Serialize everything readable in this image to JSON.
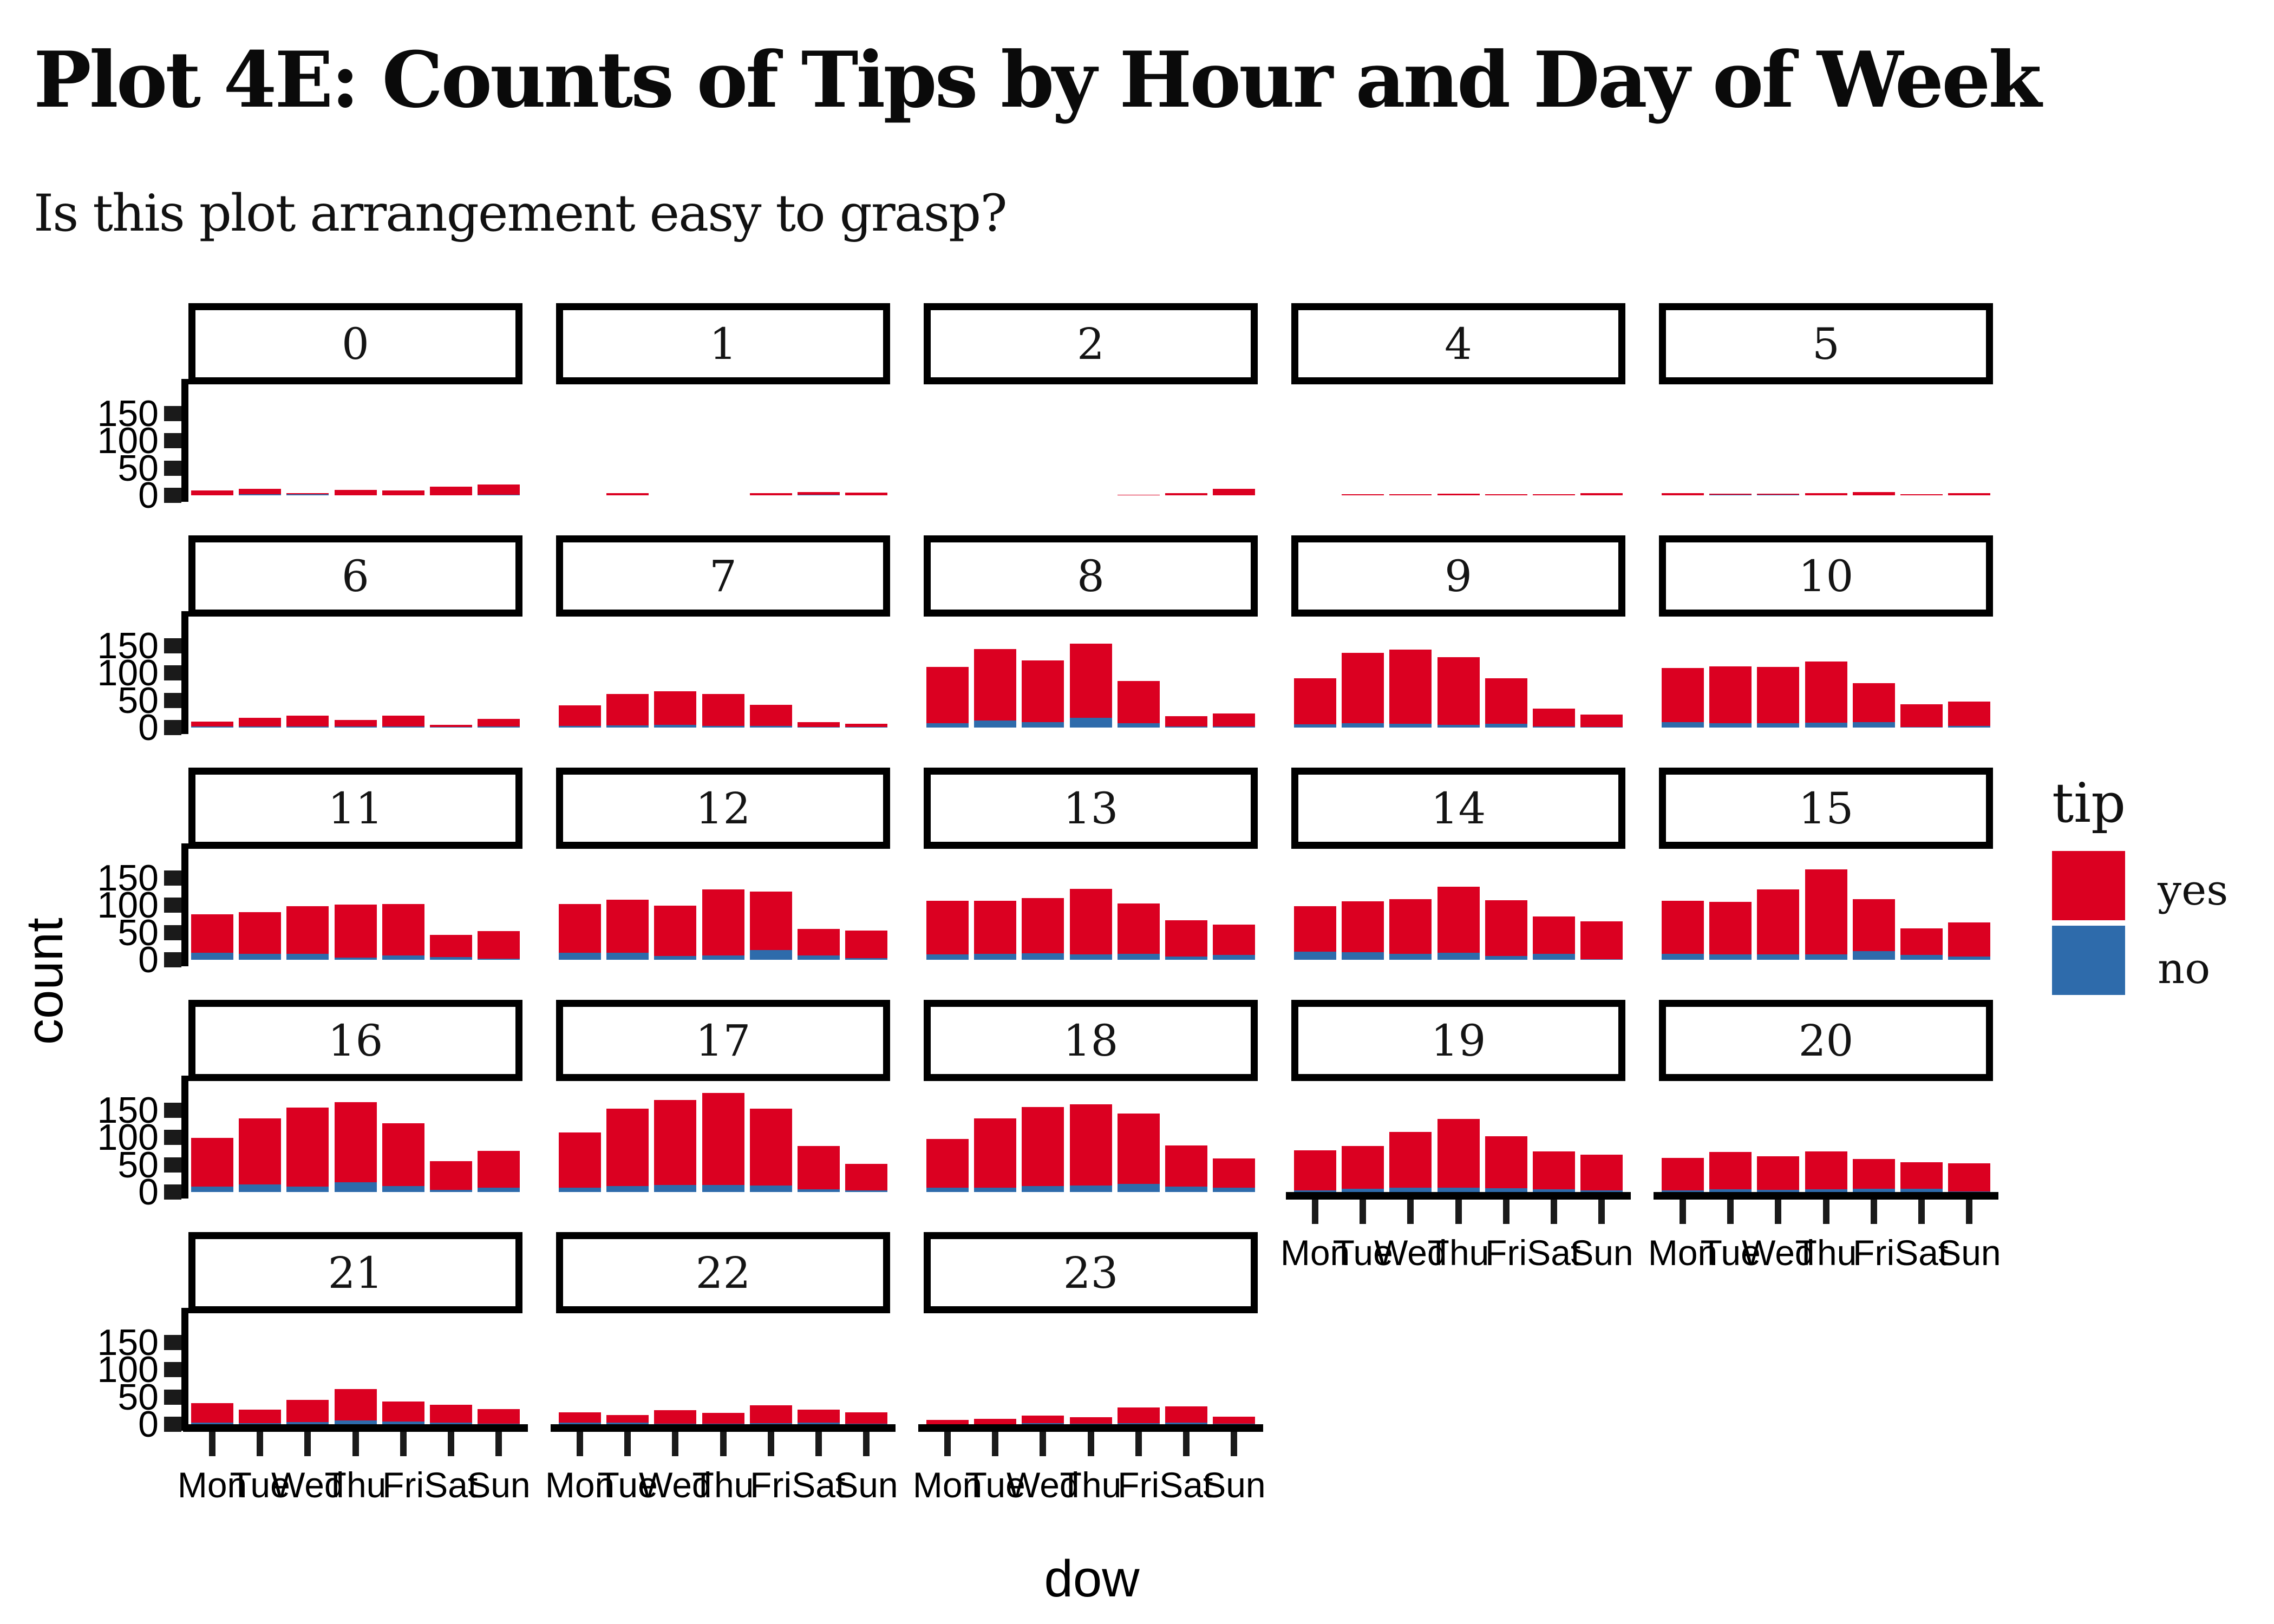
{
  "header": {
    "title": "Plot 4E: Counts of Tips by Hour and Day of Week",
    "subtitle": "Is this plot arrangement easy to grasp?"
  },
  "axes": {
    "y_label": "count",
    "x_label": "dow",
    "y_ticks": [
      150,
      100,
      50,
      0
    ],
    "x_tick_labels": [
      "Mon",
      "Tue",
      "Wed",
      "Thu",
      "Fri",
      "Sat",
      "Sun"
    ]
  },
  "legend": {
    "title": "tip",
    "entries": [
      {
        "label": "yes",
        "color": "#db0021"
      },
      {
        "label": "no",
        "color": "#2e6bab"
      }
    ]
  },
  "chart_data": {
    "type": "bar",
    "stacked": true,
    "title": "Plot 4E: Counts of Tips by Hour and Day of Week",
    "xlabel": "dow",
    "ylabel": "count",
    "facet_variable": "hour",
    "categories": [
      "Mon",
      "Tue",
      "Wed",
      "Thu",
      "Fri",
      "Sat",
      "Sun"
    ],
    "yticks": [
      0,
      50,
      100,
      150
    ],
    "ylim": [
      0,
      200
    ],
    "grid": "off",
    "legend_position": "right",
    "series_colors": {
      "yes": "#db0021",
      "no": "#2e6bab"
    },
    "facets": [
      {
        "hour": "0",
        "grid": [
          0,
          0
        ],
        "no": [
          0,
          2,
          2,
          0,
          0,
          0,
          1
        ],
        "yes": [
          9,
          10,
          2,
          10,
          9,
          16,
          19
        ]
      },
      {
        "hour": "1",
        "grid": [
          0,
          1
        ],
        "no": [
          0,
          0,
          0,
          0,
          0,
          1,
          0
        ],
        "yes": [
          0,
          4,
          0,
          0,
          4,
          5,
          5
        ]
      },
      {
        "hour": "2",
        "grid": [
          0,
          2
        ],
        "no": [
          0,
          0,
          0,
          0,
          0,
          0,
          0
        ],
        "yes": [
          0,
          0,
          0,
          0,
          1,
          4,
          12
        ]
      },
      {
        "hour": "4",
        "grid": [
          0,
          3
        ],
        "no": [
          0,
          0,
          0,
          0,
          0,
          0,
          0
        ],
        "yes": [
          0,
          2,
          2,
          3,
          2,
          2,
          4
        ]
      },
      {
        "hour": "5",
        "grid": [
          0,
          4
        ],
        "no": [
          0,
          1,
          1,
          0,
          0,
          0,
          0
        ],
        "yes": [
          4,
          2,
          2,
          4,
          6,
          2,
          4
        ]
      },
      {
        "hour": "6",
        "grid": [
          1,
          0
        ],
        "no": [
          2,
          2,
          2,
          2,
          2,
          1,
          2
        ],
        "yes": [
          9,
          16,
          20,
          12,
          20,
          4,
          14
        ]
      },
      {
        "hour": "7",
        "grid": [
          1,
          1
        ],
        "no": [
          3,
          4,
          5,
          3,
          3,
          1,
          1
        ],
        "yes": [
          38,
          57,
          61,
          58,
          39,
          9,
          6
        ]
      },
      {
        "hour": "8",
        "grid": [
          1,
          2
        ],
        "no": [
          8,
          13,
          10,
          18,
          8,
          2,
          2
        ],
        "yes": [
          103,
          131,
          113,
          136,
          77,
          19,
          24
        ]
      },
      {
        "hour": "9",
        "grid": [
          1,
          3
        ],
        "no": [
          6,
          8,
          7,
          5,
          7,
          2,
          1
        ],
        "yes": [
          84,
          129,
          136,
          124,
          83,
          33,
          23
        ]
      },
      {
        "hour": "10",
        "grid": [
          1,
          4
        ],
        "no": [
          10,
          8,
          8,
          9,
          10,
          1,
          3
        ],
        "yes": [
          99,
          104,
          103,
          112,
          71,
          42,
          45
        ]
      },
      {
        "hour": "11",
        "grid": [
          2,
          0
        ],
        "no": [
          13,
          11,
          11,
          4,
          8,
          5,
          2
        ],
        "yes": [
          70,
          76,
          87,
          97,
          94,
          41,
          50
        ]
      },
      {
        "hour": "12",
        "grid": [
          2,
          1
        ],
        "no": [
          13,
          13,
          7,
          8,
          18,
          8,
          3
        ],
        "yes": [
          89,
          97,
          92,
          121,
          107,
          49,
          50
        ]
      },
      {
        "hour": "13",
        "grid": [
          2,
          2
        ],
        "no": [
          10,
          11,
          12,
          10,
          11,
          6,
          9
        ],
        "yes": [
          98,
          97,
          101,
          120,
          92,
          66,
          55
        ]
      },
      {
        "hour": "14",
        "grid": [
          2,
          3
        ],
        "no": [
          15,
          14,
          11,
          13,
          7,
          11,
          1
        ],
        "yes": [
          83,
          93,
          100,
          121,
          102,
          68,
          69
        ]
      },
      {
        "hour": "15",
        "grid": [
          2,
          4
        ],
        "no": [
          11,
          10,
          10,
          10,
          16,
          9,
          6
        ],
        "yes": [
          97,
          96,
          119,
          155,
          95,
          49,
          62
        ]
      },
      {
        "hour": "16",
        "grid": [
          3,
          0
        ],
        "no": [
          10,
          14,
          10,
          18,
          11,
          4,
          8
        ],
        "yes": [
          89,
          121,
          145,
          147,
          115,
          52,
          67
        ]
      },
      {
        "hour": "17",
        "grid": [
          3,
          1
        ],
        "no": [
          8,
          11,
          13,
          13,
          12,
          5,
          3
        ],
        "yes": [
          101,
          142,
          155,
          168,
          141,
          79,
          49
        ]
      },
      {
        "hour": "18",
        "grid": [
          3,
          2
        ],
        "no": [
          8,
          8,
          11,
          12,
          15,
          10,
          8
        ],
        "yes": [
          89,
          127,
          145,
          149,
          129,
          75,
          53
        ]
      },
      {
        "hour": "19",
        "grid": [
          3,
          3
        ],
        "bottom_axis": true,
        "no": [
          3,
          6,
          8,
          8,
          7,
          5,
          3
        ],
        "yes": [
          73,
          78,
          102,
          126,
          95,
          69,
          65
        ]
      },
      {
        "hour": "20",
        "grid": [
          3,
          4
        ],
        "bottom_axis": true,
        "no": [
          3,
          5,
          4,
          5,
          6,
          6,
          1
        ],
        "yes": [
          59,
          68,
          61,
          69,
          54,
          49,
          51
        ]
      },
      {
        "hour": "21",
        "grid": [
          4,
          0
        ],
        "bottom_axis": true,
        "no": [
          3,
          2,
          4,
          7,
          5,
          3,
          1
        ],
        "yes": [
          36,
          25,
          41,
          57,
          37,
          33,
          27
        ]
      },
      {
        "hour": "22",
        "grid": [
          4,
          1
        ],
        "bottom_axis": true,
        "no": [
          3,
          3,
          1,
          1,
          2,
          3,
          1
        ],
        "yes": [
          19,
          14,
          25,
          20,
          33,
          24,
          21
        ]
      },
      {
        "hour": "23",
        "grid": [
          4,
          2
        ],
        "bottom_axis": true,
        "no": [
          0,
          0,
          2,
          1,
          2,
          3,
          1
        ],
        "yes": [
          8,
          10,
          14,
          12,
          29,
          30,
          13
        ]
      }
    ]
  }
}
